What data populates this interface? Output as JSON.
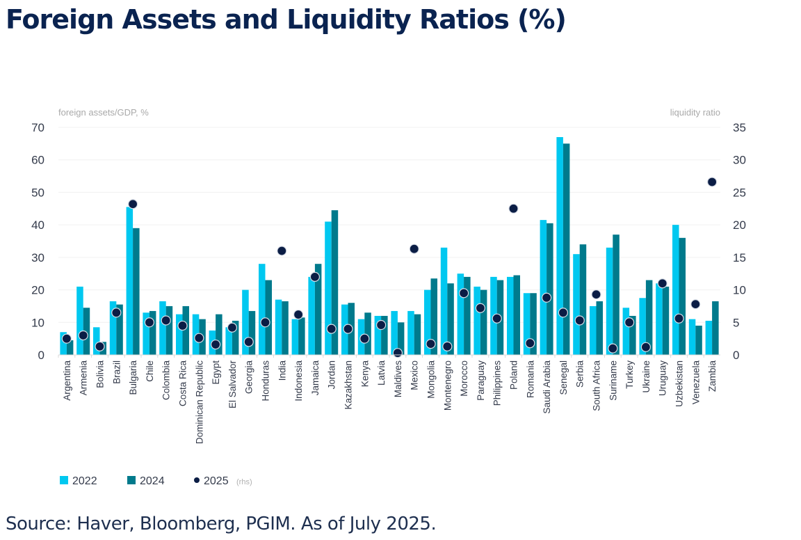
{
  "title": "Foreign Assets and Liquidity Ratios (%)",
  "source": "Source: Haver, Bloomberg, PGIM. As of July 2025.",
  "colors": {
    "series_2022": "#00c8f0",
    "series_2024": "#007a8c",
    "series_2025": "#0b1d45",
    "title": "#0a2350"
  },
  "chart_data": {
    "type": "bar",
    "title": "Foreign Assets and Liquidity Ratios (%)",
    "ylabel": "foreign assets/GDP, %",
    "y2label": "liquidity ratio",
    "ylim": [
      0,
      70
    ],
    "y2lim": [
      0,
      35
    ],
    "yticks": [
      "0",
      "10",
      "20",
      "30",
      "40",
      "50",
      "60",
      "70"
    ],
    "y2ticks": [
      "0",
      "5",
      "10",
      "15",
      "20",
      "25",
      "30",
      "35"
    ],
    "grid": true,
    "legend_position": "bottom-left",
    "categories": [
      "Argentina",
      "Armenia",
      "Bolivia",
      "Brazil",
      "Bulgaria",
      "Chile",
      "Colombia",
      "Costa Rica",
      "Dominican Republic",
      "Egypt",
      "El Salvador",
      "Georgia",
      "Honduras",
      "India",
      "Indonesia",
      "Jamaica",
      "Jordan",
      "Kazakhstan",
      "Kenya",
      "Latvia",
      "Maldives",
      "Mexico",
      "Mongolia",
      "Montenegro",
      "Morocco",
      "Paraguay",
      "Philippines",
      "Poland",
      "Romania",
      "Saudi Arabia",
      "Senegal",
      "Serbia",
      "South Africa",
      "Suriname",
      "Turkey",
      "Ukraine",
      "Uruguay",
      "Uzbekistan",
      "Venezuela",
      "Zambia"
    ],
    "series": [
      {
        "name": "2022",
        "type": "bar",
        "axis": "left",
        "values": [
          7,
          21,
          8.5,
          16.5,
          45.5,
          13,
          16.5,
          12.5,
          12.5,
          7.5,
          8.5,
          20,
          28,
          17,
          11,
          24,
          41,
          15.5,
          11,
          12,
          13.5,
          13.5,
          20,
          33,
          25,
          21,
          24,
          24,
          19,
          41.5,
          67,
          31,
          15,
          33,
          14.5,
          17.5,
          22,
          40,
          11,
          10.5
        ]
      },
      {
        "name": "2024",
        "type": "bar",
        "axis": "left",
        "values": [
          4.5,
          14.5,
          4,
          15.5,
          39,
          13.5,
          15,
          15,
          11,
          12.5,
          10.5,
          13.5,
          23,
          16.5,
          11.5,
          28,
          44.5,
          16,
          13,
          12,
          10,
          12.5,
          23.5,
          22,
          24,
          20,
          23,
          24.5,
          19,
          40.5,
          65,
          34,
          16.5,
          37,
          12,
          23,
          21,
          36,
          9,
          16.5
        ]
      },
      {
        "name": "2025 (rhs)",
        "type": "scatter",
        "axis": "right",
        "values": [
          2.5,
          3,
          1.3,
          6.5,
          23.2,
          5,
          5.3,
          4.5,
          2.6,
          1.6,
          4.2,
          2,
          5,
          16,
          6.2,
          12,
          4,
          4,
          2.5,
          4.6,
          0.3,
          16.3,
          1.7,
          1.3,
          9.5,
          7.2,
          5.6,
          22.5,
          1.8,
          8.8,
          6.5,
          5.3,
          9.3,
          1,
          5,
          1.2,
          11,
          5.6,
          7.8,
          26.6
        ]
      }
    ]
  },
  "legend": [
    {
      "label": "2022",
      "sub": ""
    },
    {
      "label": "2024",
      "sub": ""
    },
    {
      "label": "2025",
      "sub": "(rhs)"
    }
  ]
}
